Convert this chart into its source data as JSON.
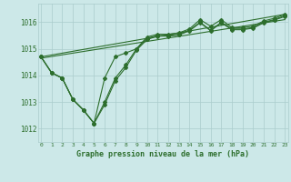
{
  "xlabel": "Graphe pression niveau de la mer (hPa)",
  "bg_color": "#cce8e8",
  "line_color": "#2d6e2d",
  "grid_color": "#aacccc",
  "text_color": "#2d6e2d",
  "xlim": [
    -0.3,
    23.3
  ],
  "ylim": [
    1011.5,
    1016.7
  ],
  "yticks": [
    1012,
    1013,
    1014,
    1015,
    1016
  ],
  "xticks": [
    0,
    1,
    2,
    3,
    4,
    5,
    6,
    7,
    8,
    9,
    10,
    11,
    12,
    13,
    14,
    15,
    16,
    17,
    18,
    19,
    20,
    21,
    22,
    23
  ],
  "series_zigzag": [
    [
      1014.7,
      1014.1,
      1013.9,
      1013.1,
      1012.7,
      1012.2,
      1013.9,
      1014.7,
      1014.85,
      1015.0,
      1015.45,
      1015.55,
      1015.55,
      1015.6,
      1015.75,
      1016.1,
      1015.85,
      1016.1,
      1015.8,
      1015.8,
      1015.85,
      1016.05,
      1016.15,
      1016.3
    ],
    [
      1014.7,
      1014.1,
      1013.9,
      1013.1,
      1012.7,
      1012.2,
      1013.0,
      1013.9,
      1014.4,
      1015.0,
      1015.4,
      1015.5,
      1015.5,
      1015.55,
      1015.7,
      1016.0,
      1015.7,
      1016.0,
      1015.75,
      1015.75,
      1015.8,
      1016.0,
      1016.1,
      1016.25
    ],
    [
      1014.7,
      1014.1,
      1013.9,
      1013.1,
      1012.7,
      1012.2,
      1012.9,
      1013.8,
      1014.3,
      1014.95,
      1015.35,
      1015.48,
      1015.48,
      1015.52,
      1015.68,
      1015.98,
      1015.68,
      1015.98,
      1015.72,
      1015.72,
      1015.78,
      1015.98,
      1016.08,
      1016.22
    ]
  ],
  "series_linear": [
    [
      [
        0,
        23
      ],
      [
        1014.7,
        1016.3
      ]
    ],
    [
      [
        0,
        23
      ],
      [
        1014.65,
        1016.1
      ]
    ]
  ]
}
